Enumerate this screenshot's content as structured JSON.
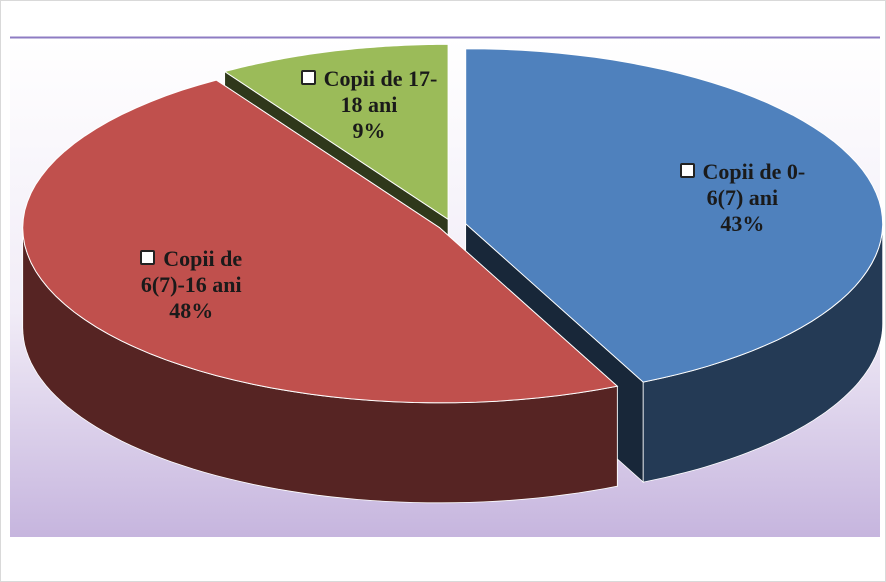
{
  "chart_data": {
    "type": "pie",
    "categories": [
      "Copii de 0-6(7) ani",
      "Copii de 6(7)-16 ani",
      "Copii de 17-18 ani"
    ],
    "values": [
      43,
      48,
      9
    ],
    "value_labels": [
      "43%",
      "48%",
      "9%"
    ],
    "colors": [
      "#4f81bd",
      "#c0504d",
      "#9bbb59"
    ]
  }
}
